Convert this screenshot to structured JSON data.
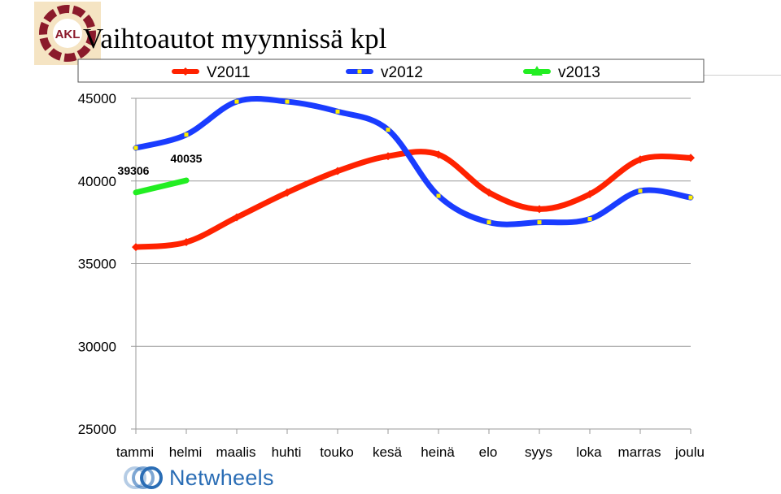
{
  "page": {
    "title": "Vaihtoautot myynnissä kpl",
    "logo_text": "AKL",
    "footer_logo_text": "Netwheels",
    "colors": {
      "logo_bg": "#f5e4c3",
      "logo_ring": "#8b1a2b",
      "footer_logo": "#2a6db5"
    }
  },
  "chart_data": {
    "type": "line",
    "title": "Vaihtoautot myynnissä kpl",
    "xlabel": "",
    "ylabel": "",
    "categories": [
      "tammi",
      "helmi",
      "maalis",
      "huhti",
      "touko",
      "kesä",
      "heinä",
      "elo",
      "syys",
      "loka",
      "marras",
      "joulu"
    ],
    "ylim": [
      25000,
      45000
    ],
    "yticks": [
      25000,
      30000,
      35000,
      40000,
      45000
    ],
    "ytick_labels": [
      "25000",
      "30000",
      "35000",
      "40000",
      "45000"
    ],
    "grid": true,
    "legend_position": "top",
    "series": [
      {
        "name": "V2011",
        "color": "#ff2200",
        "marker": "diamond",
        "values": [
          36000,
          36300,
          37800,
          39300,
          40600,
          41500,
          41600,
          39300,
          38300,
          39200,
          41300,
          41400
        ]
      },
      {
        "name": "v2012",
        "color": "#1a3cff",
        "marker": "square",
        "values": [
          42000,
          42800,
          44800,
          44800,
          44200,
          43100,
          39100,
          37500,
          37500,
          37700,
          39400,
          39000
        ]
      },
      {
        "name": "v2013",
        "color": "#22ee22",
        "marker": "triangle",
        "values": [
          39306,
          40035,
          null,
          null,
          null,
          null,
          null,
          null,
          null,
          null,
          null,
          null
        ]
      }
    ],
    "data_labels": [
      {
        "series": "v2013",
        "index": 0,
        "text": "39306"
      },
      {
        "series": "v2013",
        "index": 1,
        "text": "40035"
      }
    ]
  }
}
